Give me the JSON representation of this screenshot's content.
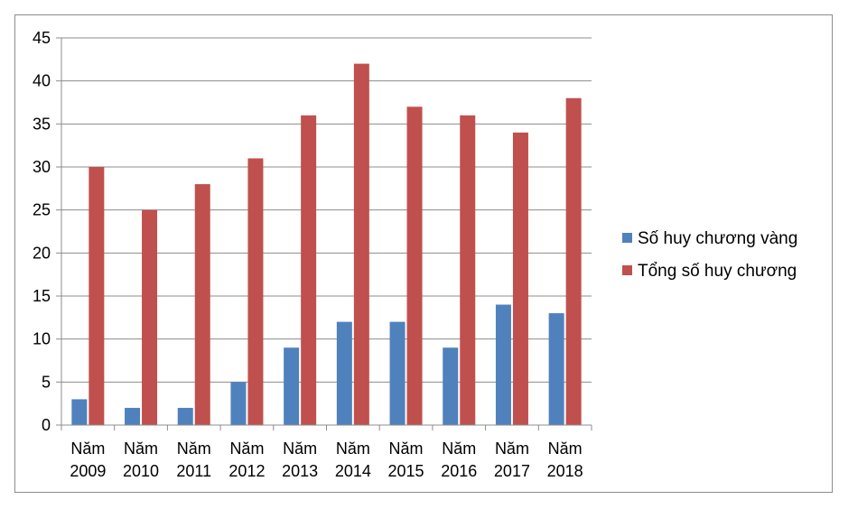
{
  "chart_data": {
    "type": "bar",
    "title": "",
    "xlabel": "",
    "ylabel": "",
    "ylim": [
      0,
      45
    ],
    "yticks": [
      0,
      5,
      10,
      15,
      20,
      25,
      30,
      35,
      40,
      45
    ],
    "grid": true,
    "legend_position": "right",
    "categories": [
      [
        "Năm",
        "2009"
      ],
      [
        "Năm",
        "2010"
      ],
      [
        "Năm",
        "2011"
      ],
      [
        "Năm",
        "2012"
      ],
      [
        "Năm",
        "2013"
      ],
      [
        "Năm",
        "2014"
      ],
      [
        "Năm",
        "2015"
      ],
      [
        "Năm",
        "2016"
      ],
      [
        "Năm",
        "2017"
      ],
      [
        "Năm",
        "2018"
      ]
    ],
    "series": [
      {
        "name": "Số huy chương vàng",
        "color": "#4f81bd",
        "values": [
          3,
          2,
          2,
          5,
          9,
          12,
          12,
          9,
          14,
          13
        ]
      },
      {
        "name": "Tổng số huy chương",
        "color": "#c0504d",
        "values": [
          30,
          25,
          28,
          31,
          36,
          42,
          37,
          36,
          34,
          38
        ]
      }
    ]
  }
}
